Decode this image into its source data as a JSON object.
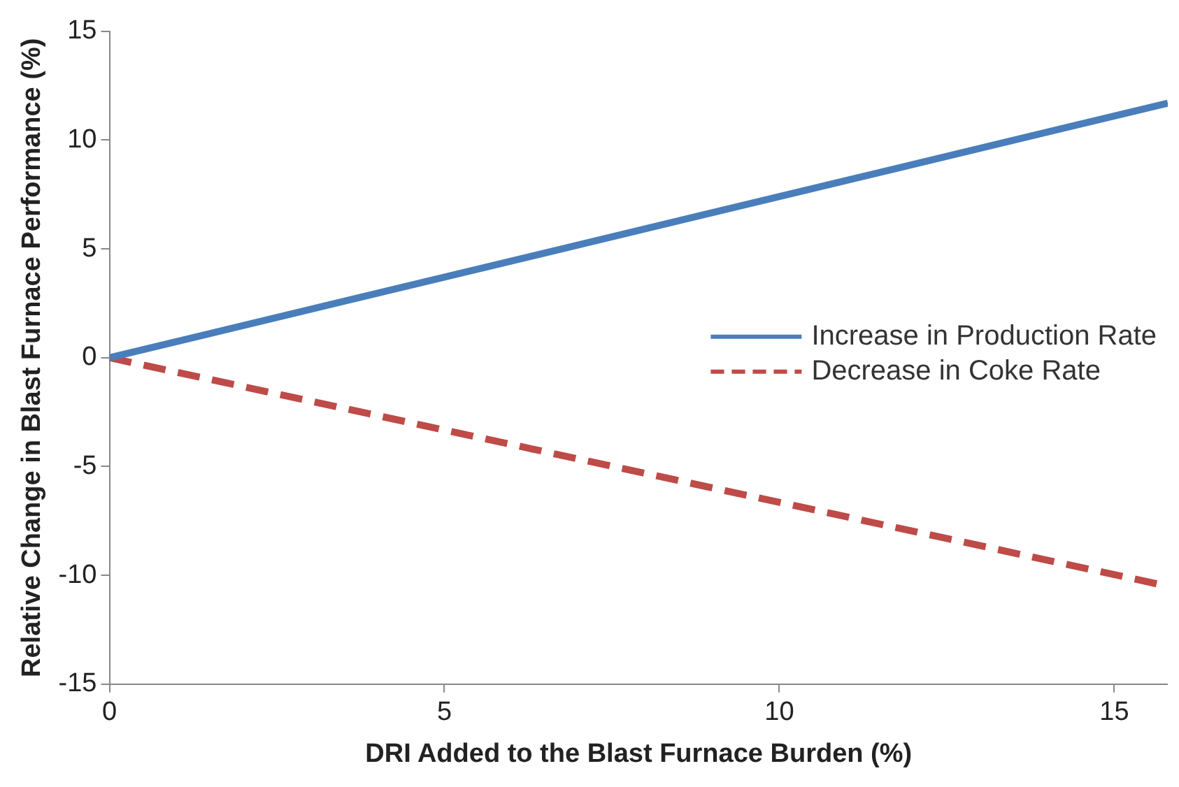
{
  "chart_data": {
    "type": "line",
    "xlabel": "DRI Added to the Blast Furnace Burden (%)",
    "ylabel": "Relative Change in Blast Furnace Performance (%)",
    "x": [
      0,
      15.8
    ],
    "series": [
      {
        "name": "Increase in Production Rate",
        "color": "#4a7ebb",
        "values": [
          0,
          11.7
        ],
        "line_style": "solid"
      },
      {
        "name": "Decrease in Coke Rate",
        "color": "#be4b48",
        "values": [
          0,
          -10.5
        ],
        "line_style": "dashed"
      }
    ],
    "xlim": [
      0,
      15.8
    ],
    "xticks": [
      0,
      5,
      10,
      15
    ],
    "ylim": [
      -15,
      15
    ],
    "yticks": [
      -15,
      -10,
      -5,
      0,
      5,
      10,
      15
    ],
    "legend": "right",
    "marker": "none"
  }
}
